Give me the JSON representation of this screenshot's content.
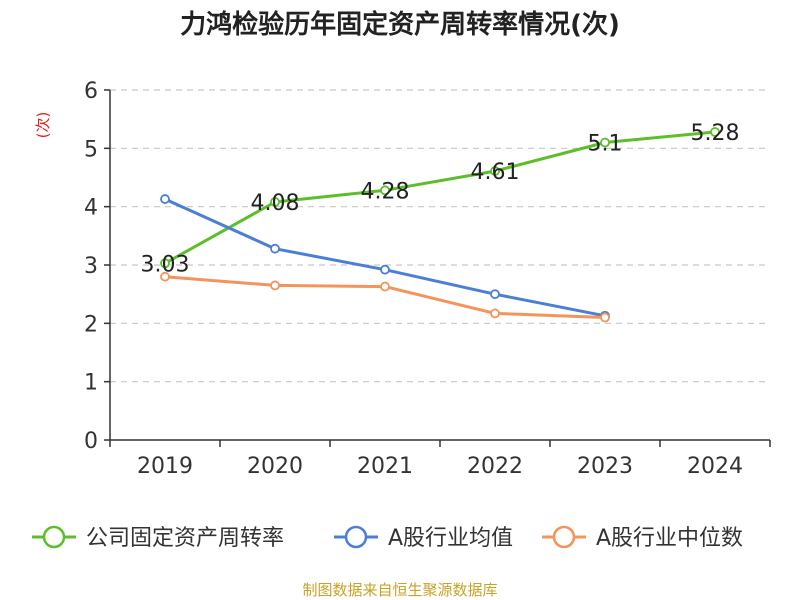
{
  "chart_data": {
    "type": "line",
    "title": "力鸿检验历年固定资产周转率情况(次)",
    "ylabel": "(次)",
    "xlabel": "",
    "categories": [
      "2019",
      "2020",
      "2021",
      "2022",
      "2023",
      "2024"
    ],
    "ylim": [
      0,
      6
    ],
    "yticks": [
      "0",
      "1",
      "2",
      "3",
      "4",
      "5",
      "6"
    ],
    "grid": true,
    "legend_position": "bottom",
    "series": [
      {
        "name": "公司固定资产周转率",
        "color": "#5cbf2a",
        "values": [
          3.03,
          4.08,
          4.28,
          4.61,
          5.1,
          5.28
        ],
        "data_labels": [
          "3.03",
          "4.08",
          "4.28",
          "4.61",
          "5.1",
          "5.28"
        ]
      },
      {
        "name": "A股行业均值",
        "color": "#4a7fd6",
        "values": [
          4.13,
          3.28,
          2.92,
          2.5,
          2.13,
          null
        ]
      },
      {
        "name": "A股行业中位数",
        "color": "#f4935a",
        "values": [
          2.8,
          2.65,
          2.63,
          2.17,
          2.1,
          null
        ]
      }
    ],
    "source": "制图数据来自恒生聚源数据库"
  }
}
